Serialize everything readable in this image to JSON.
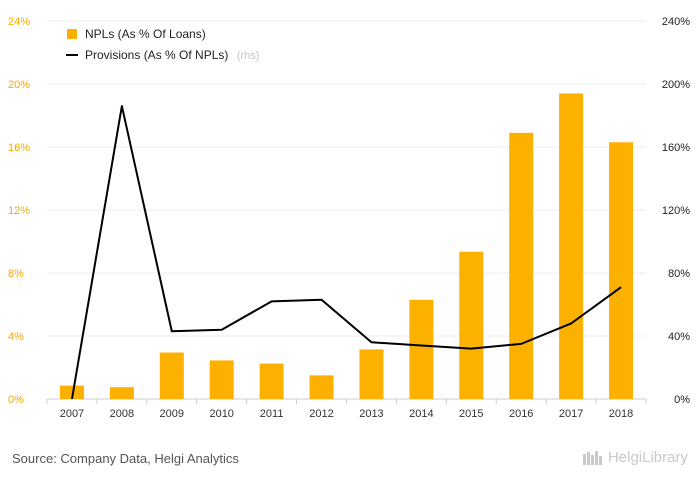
{
  "chart_data": {
    "type": "bar",
    "categories": [
      "2007",
      "2008",
      "2009",
      "2010",
      "2011",
      "2012",
      "2013",
      "2014",
      "2015",
      "2016",
      "2017",
      "2018"
    ],
    "series": [
      {
        "name": "NPLs (As % Of Loans)",
        "type": "bar",
        "axis": "left",
        "color": "#fcb100",
        "values": [
          0.85,
          0.75,
          2.95,
          2.45,
          2.25,
          1.5,
          3.15,
          6.3,
          9.35,
          16.9,
          19.4,
          16.3
        ]
      },
      {
        "name": "Provisions (As % Of NPLs)",
        "type": "line",
        "axis": "right",
        "color": "#000000",
        "values": [
          0,
          186,
          43,
          44,
          62,
          63,
          36,
          34,
          32,
          35,
          48,
          71
        ]
      }
    ],
    "y_left": {
      "ylim": [
        0,
        24
      ],
      "ticks": [
        "0%",
        "4%",
        "8%",
        "12%",
        "16%",
        "20%",
        "24%"
      ],
      "tick_values": [
        0,
        4,
        8,
        12,
        16,
        20,
        24
      ]
    },
    "y_right": {
      "ylim": [
        0,
        240
      ],
      "ticks": [
        "0%",
        "40%",
        "80%",
        "120%",
        "160%",
        "200%",
        "240%"
      ],
      "tick_values": [
        0,
        40,
        80,
        120,
        160,
        200,
        240
      ]
    },
    "legend": {
      "placement": "top-left",
      "bar_label": "NPLs (As % Of Loans)",
      "line_label": "Provisions (As % Of NPLs)",
      "line_note": "(rhs)"
    },
    "grid": true
  },
  "footer": {
    "source": "Source: Company Data, Helgi Analytics",
    "logo_text": "HelgiLibrary"
  }
}
